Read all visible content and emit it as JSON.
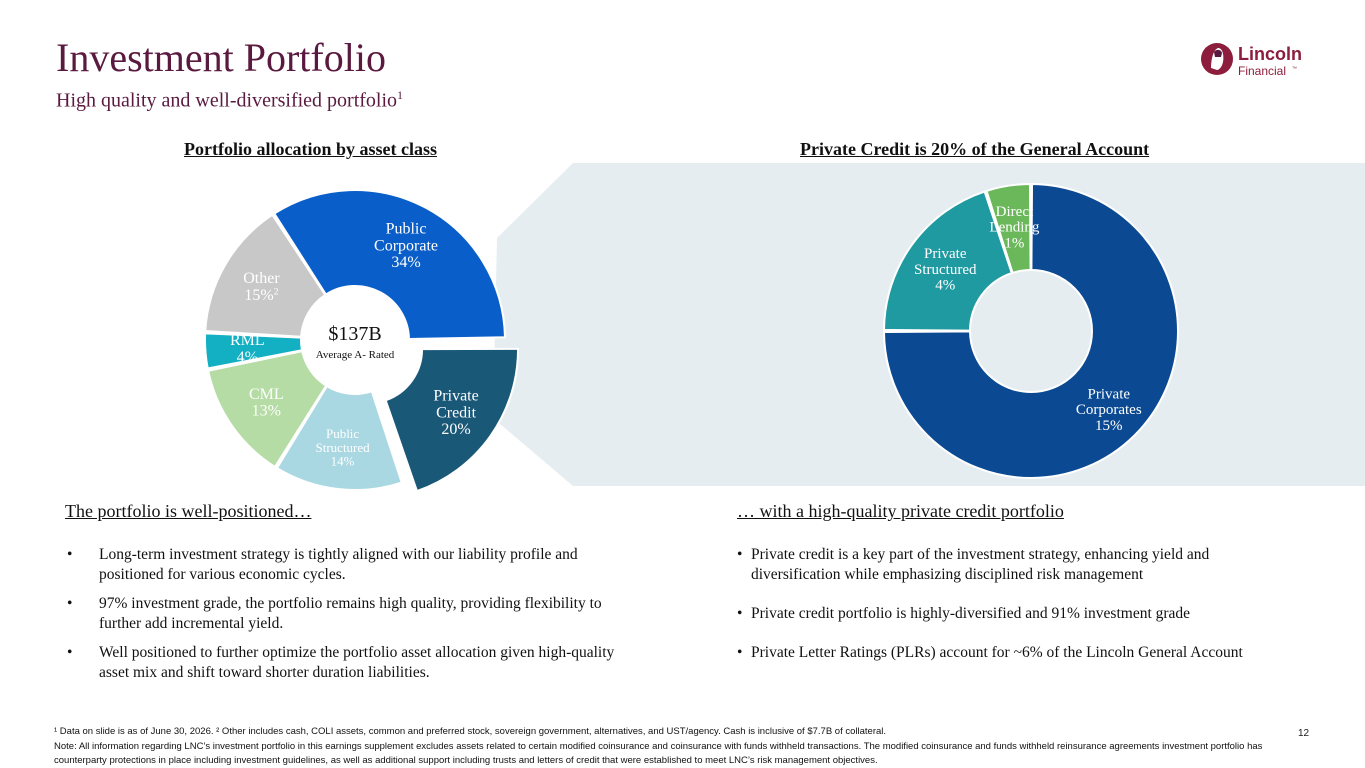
{
  "slide": {
    "title": "Investment Portfolio",
    "subtitle": "High quality and well-diversified portfolio",
    "subtitle_sup": "1",
    "logo": {
      "name": "Lincoln",
      "sub": "Financial",
      "tm": "™"
    },
    "page_number": "12"
  },
  "colors": {
    "title": "#5a1a3f",
    "band": "#e6edf1",
    "public_corporate": "#0a5ec9",
    "private_credit": "#1a5878",
    "public_structured": "#a9d8e2",
    "cml": "#b5dca4",
    "rml": "#12b0c2",
    "other": "#c8c8c8",
    "private_corporates": "#0b4a93",
    "private_structured": "#1e9aa0",
    "direct_lending": "#6bb85a"
  },
  "chart_data": [
    {
      "type": "pie",
      "title": "Portfolio allocation by asset class",
      "center_value": "$137B",
      "center_sub": "Average A- Rated",
      "slices": [
        {
          "label": "Public Corporate",
          "value": 34,
          "value_text": "34%"
        },
        {
          "label": "Private Credit",
          "value": 20,
          "value_text": "20%",
          "exploded": true
        },
        {
          "label": "Public Structured",
          "value": 14,
          "value_text": "14%"
        },
        {
          "label": "CML",
          "value": 13,
          "value_text": "13%"
        },
        {
          "label": "RML",
          "value": 4,
          "value_text": "4%"
        },
        {
          "label": "Other",
          "value": 15,
          "value_text": "15%",
          "value_sup": "2"
        }
      ]
    },
    {
      "type": "pie",
      "title": "Private Credit is 20% of the General Account",
      "slices": [
        {
          "label": "Private Corporates",
          "value": 15,
          "value_text": "15%"
        },
        {
          "label": "Private Structured",
          "value": 4,
          "value_text": "4%"
        },
        {
          "label": "Direct Lending",
          "value": 1,
          "value_text": "1%"
        }
      ]
    }
  ],
  "left_column": {
    "heading": "The portfolio is well-positioned…",
    "bullets": [
      "Long-term investment strategy is tightly aligned with our liability profile and positioned for various economic cycles.",
      "97% investment grade, the portfolio remains high quality, providing flexibility to further add incremental yield.",
      "Well positioned to further optimize the portfolio asset allocation given high-quality asset mix and shift toward shorter duration liabilities."
    ]
  },
  "right_column": {
    "heading": "… with a high-quality private credit portfolio",
    "bullets": [
      "Private credit is a key part of the investment strategy, enhancing yield and diversification while emphasizing disciplined risk management",
      "Private credit portfolio is highly-diversified and 91% investment grade",
      "Private Letter Ratings (PLRs) account for ~6% of the Lincoln General Account"
    ]
  },
  "footnotes": {
    "line1": "¹ Data on slide is as of June 30, 2026. ² Other includes cash, COLI assets, common and preferred stock, sovereign government, alternatives, and UST/agency.  Cash is inclusive of $7.7B of collateral.",
    "line2": "Note: All information regarding LNC’s investment portfolio in this earnings supplement excludes assets related to certain modified coinsurance and coinsurance with funds withheld transactions. The modified coinsurance and funds withheld reinsurance agreements investment portfolio has counterparty protections in place including investment guidelines, as well as additional support including trusts and letters of credit that were established to meet LNC’s risk management objectives."
  }
}
